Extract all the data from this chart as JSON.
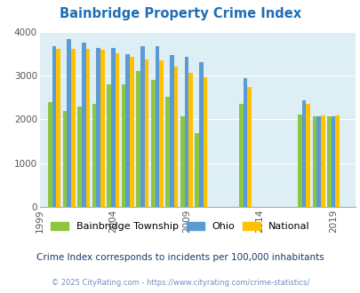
{
  "title": "Bainbridge Property Crime Index",
  "subtitle": "Crime Index corresponds to incidents per 100,000 inhabitants",
  "footer": "© 2025 CityRating.com - https://www.cityrating.com/crime-statistics/",
  "years": [
    2000,
    2001,
    2002,
    2003,
    2004,
    2005,
    2006,
    2007,
    2008,
    2009,
    2010,
    2013,
    2017,
    2018,
    2019
  ],
  "bainbridge": [
    2400,
    2200,
    2300,
    2350,
    2800,
    2800,
    3100,
    2900,
    2520,
    2070,
    1680,
    2360,
    2110,
    2080,
    2080
  ],
  "ohio": [
    3680,
    3840,
    3760,
    3630,
    3640,
    3500,
    3670,
    3680,
    3470,
    3440,
    3310,
    2950,
    2440,
    2080,
    2080
  ],
  "national": [
    3610,
    3620,
    3620,
    3600,
    3520,
    3440,
    3370,
    3350,
    3210,
    3060,
    2960,
    2740,
    2360,
    2090,
    2090
  ],
  "bar_colors": {
    "bainbridge": "#8dc63f",
    "ohio": "#5b9bd5",
    "national": "#ffc000"
  },
  "xtick_years": [
    1999,
    2004,
    2009,
    2014,
    2019
  ],
  "ylim": [
    0,
    4000
  ],
  "yticks": [
    0,
    1000,
    2000,
    3000,
    4000
  ],
  "bg_color": "#ddeef4",
  "title_color": "#1f6eb5",
  "subtitle_color": "#1a3a6b",
  "footer_color": "#7090c0",
  "legend_labels": [
    "Bainbridge Township",
    "Ohio",
    "National"
  ]
}
